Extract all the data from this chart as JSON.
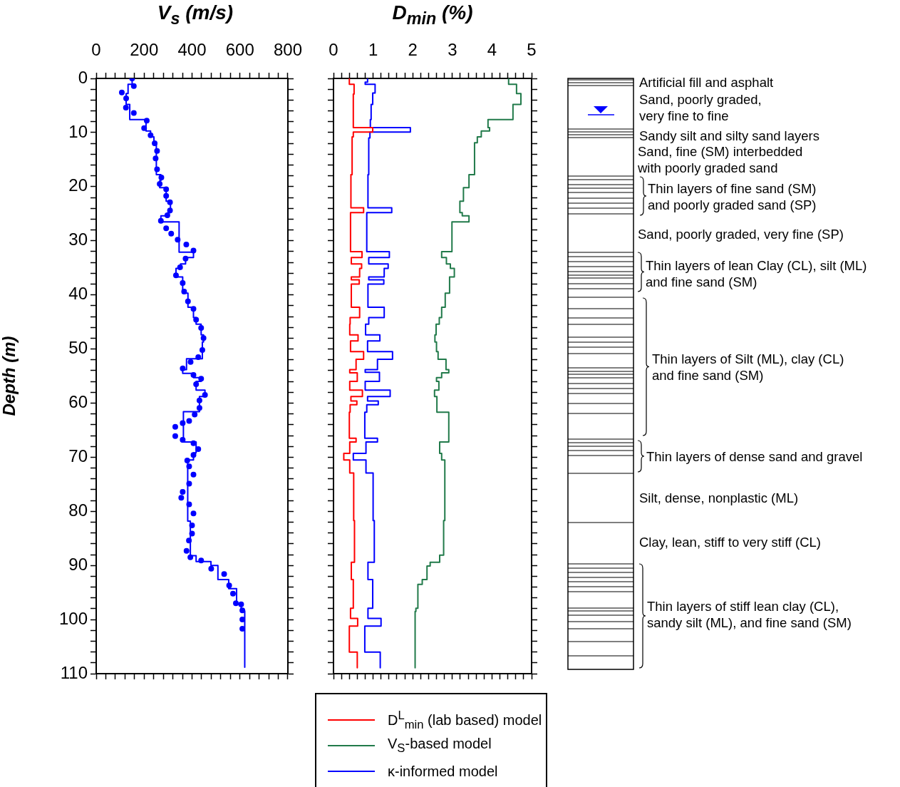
{
  "chart_data": [
    {
      "type": "line",
      "xlabel": "V$_{s}$ (m/s)",
      "ylabel": "Depth (m)",
      "xlim": [
        0,
        800
      ],
      "xticks": [
        0,
        {
          "value": 40,
          "label": null
        },
        {
          "value": 80,
          "label": null
        },
        {
          "value": 120,
          "label": null
        },
        {
          "value": 160,
          "label": null
        },
        200,
        {
          "value": 240,
          "label": null
        },
        {
          "value": 280,
          "label": null
        },
        {
          "value": 320,
          "label": null
        },
        {
          "value": 360,
          "label": null
        },
        400,
        {
          "value": 440,
          "label": null
        },
        {
          "value": 480,
          "label": null
        },
        {
          "value": 520,
          "label": null
        },
        {
          "value": 560,
          "label": null
        },
        600,
        {
          "value": 640,
          "label": null
        },
        {
          "value": 680,
          "label": null
        },
        {
          "value": 720,
          "label": null
        },
        {
          "value": 760,
          "label": null
        },
        800
      ],
      "ylim": [
        110,
        0
      ],
      "yticks": [
        0,
        {
          "value": 2,
          "label": null
        },
        {
          "value": 4,
          "label": null
        },
        {
          "value": 6,
          "label": null
        },
        {
          "value": 8,
          "label": null
        },
        10,
        {
          "value": 12,
          "label": null
        },
        {
          "value": 14,
          "label": null
        },
        {
          "value": 16,
          "label": null
        },
        {
          "value": 18,
          "label": null
        },
        20,
        {
          "value": 22,
          "label": null
        },
        {
          "value": 24,
          "label": null
        },
        {
          "value": 26,
          "label": null
        },
        {
          "value": 28,
          "label": null
        },
        30,
        {
          "value": 32,
          "label": null
        },
        {
          "value": 34,
          "label": null
        },
        {
          "value": 36,
          "label": null
        },
        {
          "value": 38,
          "label": null
        },
        40,
        {
          "value": 42,
          "label": null
        },
        {
          "value": 44,
          "label": null
        },
        {
          "value": 46,
          "label": null
        },
        {
          "value": 48,
          "label": null
        },
        50,
        {
          "value": 52,
          "label": null
        },
        {
          "value": 54,
          "label": null
        },
        {
          "value": 56,
          "label": null
        },
        {
          "value": 58,
          "label": null
        },
        60,
        {
          "value": 62,
          "label": null
        },
        {
          "value": 64,
          "label": null
        },
        {
          "value": 66,
          "label": null
        },
        {
          "value": 68,
          "label": null
        },
        70,
        {
          "value": 72,
          "label": null
        },
        {
          "value": 74,
          "label": null
        },
        {
          "value": 76,
          "label": null
        },
        {
          "value": 78,
          "label": null
        },
        80,
        {
          "value": 82,
          "label": null
        },
        {
          "value": 84,
          "label": null
        },
        {
          "value": 86,
          "label": null
        },
        {
          "value": 88,
          "label": null
        },
        90,
        {
          "value": 92,
          "label": null
        },
        {
          "value": 94,
          "label": null
        },
        {
          "value": 96,
          "label": null
        },
        {
          "value": 98,
          "label": null
        },
        100,
        {
          "value": 102,
          "label": null
        },
        {
          "value": 104,
          "label": null
        },
        {
          "value": 106,
          "label": null
        },
        {
          "value": 108,
          "label": null
        },
        110
      ],
      "series": [
        {
          "type": "line",
          "color": "#0000ff",
          "x": [
            150,
            150,
            133,
            133,
            125,
            125,
            140,
            140,
            208,
            208,
            227,
            227,
            241,
            241,
            251,
            251,
            270,
            270,
            265,
            265,
            292,
            292,
            310,
            310,
            299,
            299,
            270,
            270,
            346,
            346,
            406,
            406,
            373,
            373,
            352,
            352,
            333,
            333,
            361,
            361,
            383,
            383,
            406,
            406,
            417,
            417,
            438,
            438,
            448,
            448,
            443,
            443,
            377,
            377,
            361,
            361,
            406,
            406,
            438,
            438,
            417,
            417,
            454,
            454,
            431,
            431,
            364,
            364,
            417,
            417,
            406,
            406,
            382,
            382,
            393,
            393,
            417,
            417,
            479,
            479,
            508,
            508,
            553,
            553,
            586,
            586,
            605,
            605,
            620,
            620
          ],
          "values": [
            0,
            1.1,
            1.1,
            2.8,
            2.8,
            4.8,
            4.8,
            7.6,
            7.6,
            9.7,
            9.7,
            10.8,
            10.8,
            11.9,
            11.9,
            17.8,
            17.8,
            18.9,
            18.9,
            20.2,
            20.2,
            22.7,
            22.7,
            24.8,
            24.8,
            25.4,
            25.4,
            26.5,
            26.5,
            32.1,
            32.1,
            33.1,
            33.1,
            34.3,
            34.3,
            35.1,
            35.1,
            36.7,
            36.7,
            39.7,
            39.7,
            42.3,
            42.3,
            44.2,
            44.2,
            45.4,
            45.4,
            47.4,
            47.4,
            48.7,
            48.7,
            51.8,
            51.8,
            53.8,
            53.8,
            54.5,
            54.5,
            55.3,
            55.3,
            56.0,
            56.0,
            57.6,
            57.6,
            58.8,
            58.8,
            61.6,
            61.6,
            67.2,
            67.2,
            69.2,
            69.2,
            70.5,
            70.5,
            81.8,
            81.8,
            88.2,
            88.2,
            89.3,
            89.3,
            90.0,
            90.0,
            92.6,
            92.6,
            94.3,
            94.3,
            97.2,
            97.2,
            98.4,
            98.4,
            108.8
          ]
        },
        {
          "type": "scatter",
          "color": "#0000ff",
          "marker": "circle",
          "x": [
            150,
            157,
            107,
            125,
            124,
            157,
            211,
            200,
            227,
            244,
            254,
            248,
            254,
            272,
            265,
            292,
            292,
            308,
            308,
            297,
            270,
            292,
            313,
            340,
            376,
            406,
            373,
            350,
            333,
            361,
            367,
            383,
            406,
            417,
            438,
            448,
            443,
            426,
            394,
            361,
            406,
            438,
            417,
            454,
            431,
            431,
            411,
            388,
            361,
            330,
            330,
            361,
            406,
            426,
            406,
            380,
            388,
            406,
            388,
            361,
            355,
            388,
            406,
            400,
            400,
            387,
            377,
            393,
            438,
            480,
            534,
            555,
            571,
            583,
            605,
            610,
            610,
            610
          ],
          "values": [
            0,
            1.4,
            2.6,
            3.7,
            5.4,
            6.4,
            7.8,
            9.2,
            10.5,
            12.0,
            13.4,
            14.8,
            16.8,
            18.3,
            19.5,
            20.5,
            21.7,
            22.9,
            24.4,
            25.3,
            26.3,
            27.7,
            28.7,
            29.8,
            30.7,
            31.8,
            33.3,
            34.9,
            36.4,
            37.8,
            39.4,
            41.2,
            42.6,
            44.6,
            46.1,
            48.0,
            50.2,
            51.5,
            52.4,
            53.6,
            54.8,
            55.5,
            56.5,
            58.5,
            59.5,
            60.9,
            62.1,
            63.3,
            63.7,
            64.4,
            66.1,
            66.8,
            67.4,
            68.5,
            69.6,
            70.6,
            71.7,
            73.2,
            74.9,
            76.4,
            77.5,
            78.7,
            80.4,
            82.6,
            84.1,
            85.4,
            87.3,
            88.5,
            89.1,
            90.6,
            91.6,
            93.7,
            95.2,
            97.0,
            97.2,
            98.3,
            100.0,
            101.7
          ]
        }
      ]
    },
    {
      "type": "line",
      "xlabel": "D$_{min}$ (%)",
      "xlim": [
        0,
        5
      ],
      "xticks": [
        0,
        {
          "value": 0.2,
          "label": null
        },
        {
          "value": 0.4,
          "label": null
        },
        {
          "value": 0.6,
          "label": null
        },
        {
          "value": 0.8,
          "label": null
        },
        1,
        {
          "value": 1.2,
          "label": null
        },
        {
          "value": 1.4,
          "label": null
        },
        {
          "value": 1.6,
          "label": null
        },
        {
          "value": 1.8,
          "label": null
        },
        2,
        {
          "value": 2.2,
          "label": null
        },
        {
          "value": 2.4,
          "label": null
        },
        {
          "value": 2.6,
          "label": null
        },
        {
          "value": 2.8,
          "label": null
        },
        3,
        {
          "value": 3.2,
          "label": null
        },
        {
          "value": 3.4,
          "label": null
        },
        {
          "value": 3.6,
          "label": null
        },
        {
          "value": 3.8,
          "label": null
        },
        4,
        {
          "value": 4.2,
          "label": null
        },
        {
          "value": 4.4,
          "label": null
        },
        {
          "value": 4.6,
          "label": null
        },
        {
          "value": 4.8,
          "label": null
        },
        5
      ],
      "ylim": [
        110,
        0
      ],
      "yticks": [
        0,
        {
          "value": 2,
          "label": null
        },
        {
          "value": 4,
          "label": null
        },
        {
          "value": 6,
          "label": null
        },
        {
          "value": 8,
          "label": null
        },
        10,
        {
          "value": 12,
          "label": null
        },
        {
          "value": 14,
          "label": null
        },
        {
          "value": 16,
          "label": null
        },
        {
          "value": 18,
          "label": null
        },
        20,
        {
          "value": 22,
          "label": null
        },
        {
          "value": 24,
          "label": null
        },
        {
          "value": 26,
          "label": null
        },
        {
          "value": 28,
          "label": null
        },
        30,
        {
          "value": 32,
          "label": null
        },
        {
          "value": 34,
          "label": null
        },
        {
          "value": 36,
          "label": null
        },
        {
          "value": 38,
          "label": null
        },
        40,
        {
          "value": 42,
          "label": null
        },
        {
          "value": 44,
          "label": null
        },
        {
          "value": 46,
          "label": null
        },
        {
          "value": 48,
          "label": null
        },
        50,
        {
          "value": 52,
          "label": null
        },
        {
          "value": 54,
          "label": null
        },
        {
          "value": 56,
          "label": null
        },
        {
          "value": 58,
          "label": null
        },
        60,
        {
          "value": 62,
          "label": null
        },
        {
          "value": 64,
          "label": null
        },
        {
          "value": 66,
          "label": null
        },
        {
          "value": 68,
          "label": null
        },
        70,
        {
          "value": 72,
          "label": null
        },
        {
          "value": 74,
          "label": null
        },
        {
          "value": 76,
          "label": null
        },
        {
          "value": 78,
          "label": null
        },
        80,
        {
          "value": 82,
          "label": null
        },
        {
          "value": 84,
          "label": null
        },
        {
          "value": 86,
          "label": null
        },
        {
          "value": 88,
          "label": null
        },
        90,
        {
          "value": 92,
          "label": null
        },
        {
          "value": 94,
          "label": null
        },
        {
          "value": 96,
          "label": null
        },
        {
          "value": 98,
          "label": null
        },
        100,
        {
          "value": 102,
          "label": null
        },
        {
          "value": 104,
          "label": null
        },
        {
          "value": 106,
          "label": null
        },
        {
          "value": 108,
          "label": null
        },
        110
      ],
      "tick_labels": "x",
      "legend": "bottom",
      "series": [
        {
          "name": "D$^{L}$$_{min}$ (lab based) model",
          "color": "#ff0000",
          "x": [
            0.4,
            0.4,
            0.52,
            0.52,
            0.5,
            0.5,
            0.99,
            0.99,
            0.5,
            0.5,
            0.47,
            0.47,
            0.44,
            0.44,
            0.76,
            0.76,
            0.43,
            0.43,
            0.72,
            0.72,
            0.45,
            0.45,
            0.71,
            0.71,
            0.66,
            0.66,
            0.45,
            0.45,
            0.65,
            0.65,
            0.45,
            0.45,
            0.66,
            0.66,
            0.42,
            0.42,
            0.41,
            0.41,
            0.62,
            0.62,
            0.43,
            0.43,
            0.76,
            0.76,
            0.57,
            0.57,
            0.41,
            0.41,
            0.6,
            0.6,
            0.41,
            0.41,
            0.73,
            0.73,
            0.44,
            0.44,
            0.59,
            0.59,
            0.42,
            0.42,
            0.4,
            0.4,
            0.57,
            0.57,
            0.41,
            0.41,
            0.26,
            0.26,
            0.41,
            0.41,
            0.51,
            0.51,
            0.53,
            0.53,
            0.45,
            0.45,
            0.5,
            0.5,
            0.43,
            0.43,
            0.61,
            0.61,
            0.4,
            0.4,
            0.6,
            0.6
          ],
          "values": [
            0,
            1.1,
            1.1,
            2.9,
            2.9,
            9.1,
            9.1,
            9.9,
            9.9,
            10.8,
            10.8,
            17.8,
            17.8,
            23.9,
            23.9,
            24.8,
            24.8,
            32.0,
            32.0,
            33.1,
            33.1,
            34.3,
            34.3,
            35.1,
            35.1,
            36.7,
            36.7,
            37.2,
            37.2,
            38.0,
            38.0,
            42.3,
            42.3,
            44.2,
            44.2,
            45.4,
            45.4,
            47.4,
            47.4,
            48.5,
            48.5,
            50.5,
            50.5,
            51.9,
            51.9,
            53.8,
            53.8,
            54.4,
            54.4,
            56.0,
            56.0,
            57.6,
            57.6,
            58.8,
            58.8,
            59.6,
            59.6,
            60.3,
            60.3,
            61.7,
            61.7,
            66.5,
            66.5,
            67.2,
            67.2,
            69.3,
            69.3,
            70.5,
            70.5,
            72.9,
            72.9,
            81.7,
            81.7,
            89.4,
            89.4,
            92.6,
            92.6,
            97.9,
            97.9,
            99.8,
            99.8,
            101.2,
            101.2,
            106.0,
            106.0,
            108.9
          ]
        },
        {
          "name": "V$_{S}$-based model",
          "color": "#217a4a",
          "x": [
            4.42,
            4.42,
            4.62,
            4.62,
            4.73,
            4.73,
            4.53,
            4.53,
            3.9,
            3.9,
            3.94,
            3.94,
            3.73,
            3.73,
            3.63,
            3.63,
            3.56,
            3.56,
            3.42,
            3.42,
            3.28,
            3.28,
            3.19,
            3.19,
            3.25,
            3.25,
            3.42,
            3.42,
            2.99,
            2.99,
            2.73,
            2.73,
            2.85,
            2.85,
            2.95,
            2.95,
            3.05,
            3.05,
            2.93,
            2.93,
            2.82,
            2.82,
            2.73,
            2.73,
            2.67,
            2.67,
            2.59,
            2.59,
            2.56,
            2.56,
            2.6,
            2.6,
            2.64,
            2.64,
            2.84,
            2.84,
            2.91,
            2.91,
            2.73,
            2.73,
            2.6,
            2.6,
            2.66,
            2.66,
            2.55,
            2.55,
            2.61,
            2.61,
            2.91,
            2.91,
            2.68,
            2.68,
            2.73,
            2.73,
            2.81,
            2.81,
            2.78,
            2.78,
            2.68,
            2.68,
            2.44,
            2.44,
            2.36,
            2.36,
            2.24,
            2.24,
            2.13,
            2.13,
            2.08,
            2.08,
            2.06,
            2.06
          ],
          "values": [
            0,
            1.1,
            1.1,
            2.8,
            2.8,
            4.8,
            4.8,
            7.6,
            7.6,
            9.1,
            9.1,
            9.7,
            9.7,
            10.8,
            10.8,
            11.9,
            11.9,
            17.8,
            17.8,
            20.2,
            20.2,
            22.7,
            22.7,
            24.8,
            24.8,
            25.4,
            25.4,
            26.5,
            26.5,
            32.0,
            32.0,
            33.1,
            33.1,
            34.3,
            34.3,
            35.1,
            35.1,
            36.7,
            36.7,
            39.7,
            39.7,
            42.3,
            42.3,
            44.2,
            44.2,
            45.4,
            45.4,
            47.4,
            47.4,
            48.7,
            48.7,
            50.5,
            50.5,
            51.9,
            51.9,
            53.8,
            53.8,
            54.4,
            54.4,
            55.3,
            55.3,
            56.0,
            56.0,
            57.6,
            57.6,
            58.8,
            58.8,
            61.7,
            61.7,
            67.2,
            67.2,
            69.3,
            69.3,
            70.5,
            70.5,
            81.7,
            81.7,
            88.1,
            88.1,
            89.4,
            89.4,
            90.1,
            90.1,
            92.6,
            92.6,
            93.5,
            93.5,
            97.9,
            97.9,
            98.5,
            98.5,
            108.9
          ]
        },
        {
          "name": "κ-informed model",
          "color": "#0000ff",
          "x": [
            0.86,
            0.86,
            0.8,
            0.8,
            1.05,
            1.05,
            0.99,
            0.99,
            0.95,
            0.95,
            0.93,
            0.93,
            1.94,
            1.94,
            0.92,
            0.92,
            0.89,
            0.89,
            0.87,
            0.87,
            1.47,
            1.47,
            0.84,
            0.84,
            1.41,
            1.41,
            0.89,
            0.89,
            1.38,
            1.38,
            1.28,
            1.28,
            0.89,
            0.89,
            1.27,
            1.27,
            0.87,
            0.87,
            1.28,
            1.28,
            0.89,
            0.89,
            0.81,
            0.81,
            1.17,
            1.17,
            0.86,
            0.86,
            1.49,
            1.49,
            1.11,
            1.11,
            0.8,
            0.8,
            1.16,
            1.16,
            0.8,
            0.8,
            1.43,
            1.43,
            0.86,
            0.86,
            1.13,
            1.13,
            0.84,
            0.84,
            0.79,
            0.79,
            1.11,
            1.11,
            0.82,
            0.82,
            0.5,
            0.5,
            0.82,
            0.82,
            1.0,
            1.0,
            1.03,
            1.03,
            0.87,
            0.87,
            0.99,
            0.99,
            0.87,
            0.87,
            1.2,
            1.2,
            0.79,
            0.79,
            1.18,
            1.18
          ],
          "values": [
            0,
            0.7,
            0.7,
            1.1,
            1.1,
            2.7,
            2.7,
            4.8,
            4.8,
            7.6,
            7.6,
            9.1,
            9.1,
            9.9,
            9.9,
            11.0,
            11.0,
            17.8,
            17.8,
            23.9,
            23.9,
            24.8,
            24.8,
            32.0,
            32.0,
            33.1,
            33.1,
            34.3,
            34.3,
            35.1,
            35.1,
            36.7,
            36.7,
            37.2,
            37.2,
            38.0,
            38.0,
            42.3,
            42.3,
            44.2,
            44.2,
            45.4,
            45.4,
            47.4,
            47.4,
            48.5,
            48.5,
            50.5,
            50.5,
            51.9,
            51.9,
            53.8,
            53.8,
            54.3,
            54.3,
            56.0,
            56.0,
            57.6,
            57.6,
            58.8,
            58.8,
            59.6,
            59.6,
            60.3,
            60.3,
            61.7,
            61.7,
            66.5,
            66.5,
            67.2,
            67.2,
            69.3,
            69.3,
            70.5,
            70.5,
            72.9,
            72.9,
            81.7,
            81.7,
            89.4,
            89.4,
            92.6,
            92.6,
            97.9,
            97.9,
            99.8,
            99.8,
            101.2,
            101.2,
            106.0,
            106.0,
            108.9
          ]
        }
      ]
    },
    {
      "type": "other",
      "annotations": [
        "Artificial fill and asphalt",
        "Sand, poorly graded,\nvery fine to fine",
        "Sandy silt and silty sand layers",
        "Sand, fine (SM) interbedded\nwith poorly graded sand",
        "Thin layers of fine sand (SM)\nand poorly graded sand (SP)",
        "Sand, poorly graded, very fine (SP)",
        "Thin layers of lean Clay (CL), silt (ML)\nand fine sand (SM)",
        "Thin layers of Silt (ML), clay (CL)\nand fine sand (SM)",
        "Thin layers of dense sand and gravel",
        "Silt, dense, nonplastic (ML)",
        "Clay, lean, stiff to very stiff (CL)",
        "Thin layers of stiff lean clay (CL),\nsandy silt (ML), and fine sand (SM)"
      ]
    }
  ]
}
